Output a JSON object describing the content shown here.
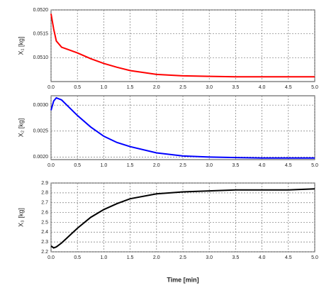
{
  "chart_data": [
    {
      "type": "line",
      "ylabel": "X₁ [kg]",
      "x": [
        0,
        0.05,
        0.1,
        0.2,
        0.3,
        0.5,
        0.75,
        1,
        1.25,
        1.5,
        2,
        2.5,
        3,
        3.5,
        4,
        4.5,
        5
      ],
      "series": [
        {
          "color": "#ff0000",
          "values": [
            0.05192,
            0.0516,
            0.05135,
            0.05122,
            0.05118,
            0.0511,
            0.05098,
            0.05088,
            0.0508,
            0.05073,
            0.05065,
            0.05062,
            0.05061,
            0.0506,
            0.0506,
            0.0506,
            0.0506
          ]
        }
      ],
      "xlim": [
        0,
        5
      ],
      "xticks": [
        {
          "value": 0,
          "label": "0.0"
        },
        0.5,
        {
          "value": 1,
          "label": "1.0"
        },
        1.5,
        {
          "value": 2,
          "label": "2.0"
        },
        2.5,
        {
          "value": 3,
          "label": "3.0"
        },
        3.5,
        {
          "value": 4,
          "label": "4.0"
        },
        4.5,
        {
          "value": 5,
          "label": "5.0"
        }
      ],
      "ylim": [
        0.0505,
        0.052
      ],
      "yticks": [
        {
          "value": 0.051,
          "label": "0.0510"
        },
        {
          "value": 0.0515,
          "label": "0.0515"
        },
        {
          "value": 0.052,
          "label": "0.0520"
        }
      ],
      "grid": true
    },
    {
      "type": "line",
      "ylabel": "X₂ [kg]",
      "x": [
        0,
        0.05,
        0.1,
        0.2,
        0.3,
        0.5,
        0.75,
        1,
        1.25,
        1.5,
        2,
        2.5,
        3,
        3.5,
        4,
        4.5,
        5
      ],
      "series": [
        {
          "color": "#0000ff",
          "values": [
            0.0029,
            0.00308,
            0.00314,
            0.0031,
            0.003,
            0.0028,
            0.00258,
            0.0024,
            0.00228,
            0.0022,
            0.00208,
            0.00202,
            0.002,
            0.00199,
            0.00198,
            0.00198,
            0.00198
          ]
        }
      ],
      "xlim": [
        0,
        5
      ],
      "xticks": [
        {
          "value": 0,
          "label": "0.0"
        },
        0.5,
        {
          "value": 1,
          "label": "1.0"
        },
        1.5,
        {
          "value": 2,
          "label": "2.0"
        },
        2.5,
        {
          "value": 3,
          "label": "3.0"
        },
        3.5,
        {
          "value": 4,
          "label": "4.0"
        },
        4.5,
        {
          "value": 5,
          "label": "5.0"
        }
      ],
      "ylim": [
        0.00195,
        0.00318
      ],
      "yticks": [
        {
          "value": 0.002,
          "label": "0.0020"
        },
        {
          "value": 0.0025,
          "label": "0.0025"
        },
        {
          "value": 0.003,
          "label": "0.0030"
        }
      ],
      "grid": true
    },
    {
      "type": "line",
      "ylabel": "X₃ [kg]",
      "xlabel": "Time [min]",
      "x": [
        0,
        0.05,
        0.1,
        0.2,
        0.3,
        0.5,
        0.75,
        1,
        1.25,
        1.5,
        2,
        2.5,
        3,
        3.5,
        4,
        4.5,
        5
      ],
      "series": [
        {
          "color": "#000000",
          "values": [
            2.26,
            2.24,
            2.25,
            2.29,
            2.34,
            2.44,
            2.55,
            2.63,
            2.69,
            2.74,
            2.79,
            2.81,
            2.82,
            2.83,
            2.83,
            2.83,
            2.84
          ]
        }
      ],
      "xlim": [
        0,
        5
      ],
      "xticks": [
        {
          "value": 0,
          "label": "0.0"
        },
        0.5,
        {
          "value": 1,
          "label": "1.0"
        },
        1.5,
        {
          "value": 2,
          "label": "2.0"
        },
        2.5,
        {
          "value": 3,
          "label": "3.0"
        },
        3.5,
        {
          "value": 4,
          "label": "4.0"
        },
        4.5,
        {
          "value": 5,
          "label": "5.0"
        }
      ],
      "ylim": [
        2.2,
        2.9
      ],
      "yticks": [
        2.2,
        2.3,
        2.4,
        2.5,
        2.6,
        2.7,
        2.8,
        2.9
      ],
      "grid": true
    }
  ]
}
